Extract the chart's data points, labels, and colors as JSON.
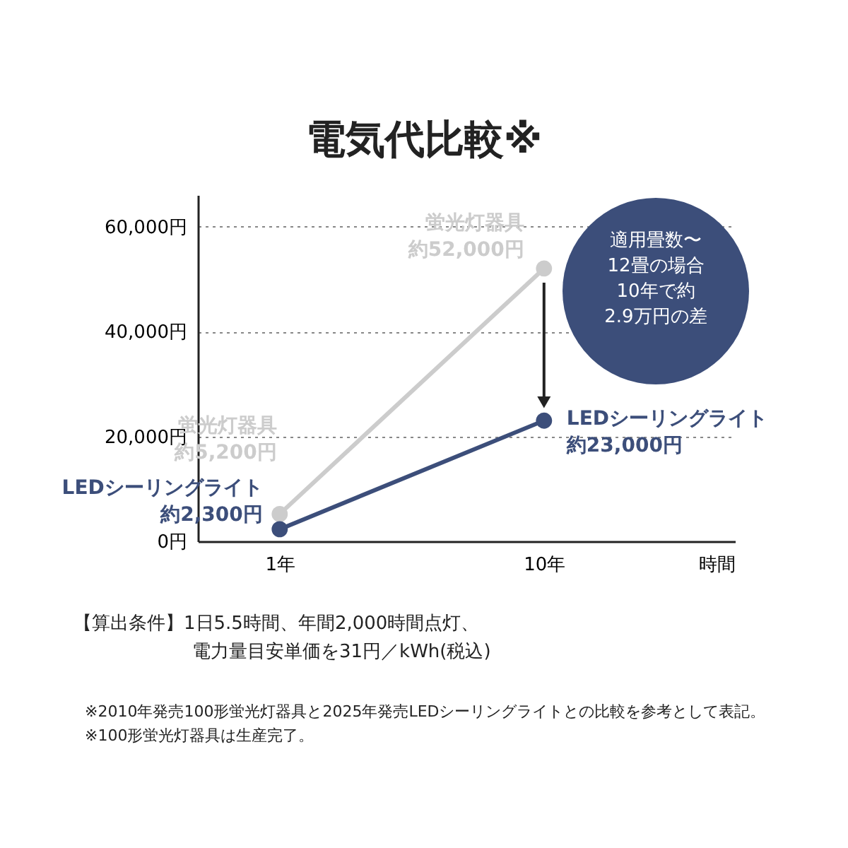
{
  "chart_data": {
    "type": "line",
    "title": "電気代比較※",
    "xlabel": "時間",
    "categories": [
      "1年",
      "10年"
    ],
    "series": [
      {
        "name": "蛍光灯器具",
        "color": "#cccccc",
        "values": [
          5200,
          52000
        ],
        "value_labels": [
          "約5,200円",
          "約52,000円"
        ]
      },
      {
        "name": "LEDシーリングライト",
        "color": "#3c4e7a",
        "values": [
          2300,
          23000
        ],
        "value_labels": [
          "約2,300円",
          "約23,000円"
        ]
      }
    ],
    "ylim": [
      0,
      66000
    ],
    "yticks": [
      {
        "value": 0,
        "label": "0円"
      },
      {
        "value": 20000,
        "label": "20,000円"
      },
      {
        "value": 40000,
        "label": "40,000円"
      },
      {
        "value": 60000,
        "label": "60,000円"
      }
    ],
    "grid": "y",
    "marker": "circle",
    "line_style": "solid",
    "annotations": [
      "適用畳数〜12畳の場合10年で約2.9万円の差",
      "【算出条件】1日5.5時間、年間2,000時間点灯、電力量目安単価を31円／kWh(税込)",
      "※2010年発売100形蛍光灯器具と2025年発売LEDシーリングライトとの比較を参考として表記。",
      "※100形蛍光灯器具は生産完了。"
    ]
  }
}
